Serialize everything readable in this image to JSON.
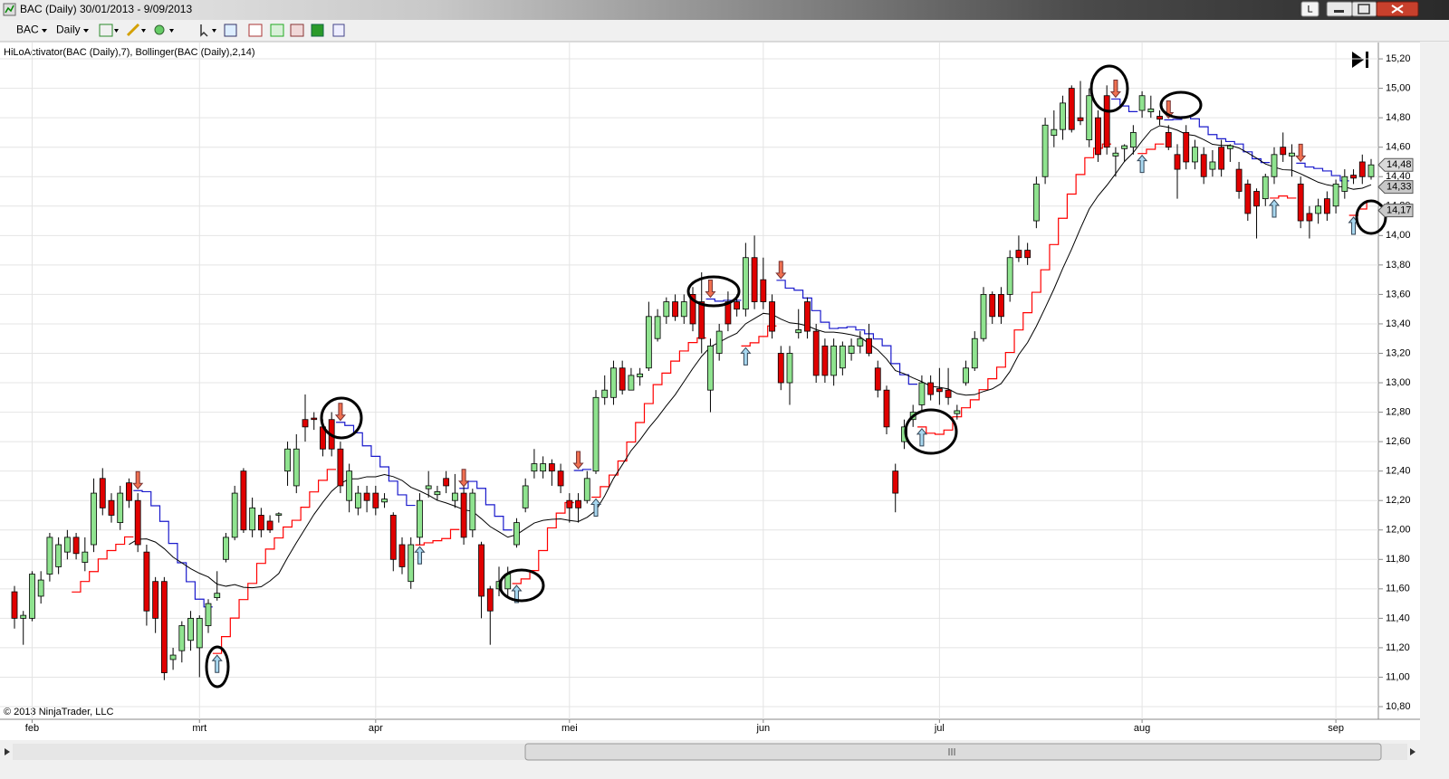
{
  "window": {
    "title": "BAC (Daily)  30/01/2013 - 9/09/2013",
    "button": "L"
  },
  "toolbar": {
    "instrument": "BAC",
    "interval": "Daily"
  },
  "indicator_label": "HiLoActivator(BAC (Daily),7), Bollinger(BAC (Daily),2,14)",
  "copyright": "© 2013 NinjaTrader, LLC",
  "chart_data": {
    "type": "candlestick",
    "categories": [
      null,
      null,
      "feb",
      null,
      null,
      null,
      null,
      null,
      null,
      null,
      null,
      null,
      null,
      null,
      null,
      null,
      null,
      null,
      null,
      null,
      null,
      "mrt",
      null,
      null,
      null,
      null,
      null,
      null,
      null,
      null,
      null,
      null,
      null,
      null,
      null,
      null,
      null,
      null,
      null,
      null,
      null,
      "apr",
      null,
      null,
      null,
      null,
      null,
      null,
      null,
      null,
      null,
      null,
      null,
      null,
      null,
      null,
      null,
      null,
      null,
      null,
      null,
      null,
      null,
      "mei",
      null,
      null,
      null,
      null,
      null,
      null,
      null,
      null,
      null,
      null,
      null,
      null,
      null,
      null,
      null,
      null,
      null,
      null,
      null,
      null,
      null,
      "jun",
      null,
      null,
      null,
      null,
      null,
      null,
      null,
      null,
      null,
      null,
      null,
      null,
      null,
      null,
      null,
      null,
      null,
      null,
      null,
      "jul",
      null,
      null,
      null,
      null,
      null,
      null,
      null,
      null,
      null,
      null,
      null,
      null,
      null,
      null,
      null,
      null,
      null,
      null,
      null,
      null,
      null,
      null,
      "aug",
      null,
      null,
      null,
      null,
      null,
      null,
      null,
      null,
      null,
      null,
      null,
      null,
      null,
      null,
      null,
      null,
      null,
      null,
      null,
      null,
      null,
      "sep",
      null,
      null,
      null,
      null
    ],
    "open": [
      11.58,
      11.4,
      11.4,
      11.55,
      11.7,
      11.75,
      11.85,
      11.95,
      11.78,
      11.9,
      12.35,
      12.2,
      12.05,
      12.32,
      12.2,
      11.85,
      11.65,
      11.65,
      11.12,
      11.18,
      11.25,
      11.2,
      11.35,
      11.54,
      11.8,
      11.95,
      12.4,
      12.0,
      12.1,
      12.06,
      12.1,
      12.4,
      12.3,
      12.75,
      12.76,
      12.7,
      12.75,
      12.55,
      12.2,
      12.15,
      12.25,
      12.25,
      12.19,
      12.1,
      11.9,
      11.65,
      11.95,
      12.28,
      12.24,
      12.35,
      12.2,
      12.25,
      12.0,
      11.9,
      11.6,
      11.6,
      11.6,
      11.9,
      12.15,
      12.4,
      12.4,
      12.45,
      12.4,
      12.2,
      12.2,
      12.2,
      12.4,
      12.9,
      12.9,
      13.1,
      12.95,
      13.04,
      13.1,
      13.3,
      13.45,
      13.55,
      13.45,
      13.6,
      13.55,
      12.95,
      13.2,
      13.55,
      13.55,
      13.5,
      13.85,
      13.7,
      13.55,
      13.2,
      13.0,
      13.34,
      13.55,
      13.35,
      13.25,
      13.05,
      13.1,
      13.2,
      13.25,
      13.3,
      13.1,
      12.95,
      12.4,
      12.6,
      12.75,
      12.85,
      13.0,
      12.96,
      12.95,
      12.79,
      13.0,
      13.1,
      13.3,
      13.6,
      13.6,
      13.6,
      13.9,
      13.9,
      14.1,
      14.4,
      14.68,
      14.72,
      15.0,
      14.8,
      14.65,
      14.8,
      14.95,
      14.54,
      14.59,
      14.6,
      14.85,
      14.84,
      14.81,
      14.7,
      14.55,
      14.7,
      14.5,
      14.55,
      14.45,
      14.6,
      14.59,
      14.45,
      14.35,
      14.3,
      14.25,
      14.4,
      14.6,
      14.54,
      14.35,
      14.15,
      14.15,
      14.25,
      14.2,
      14.3,
      14.41,
      14.5,
      14.4
    ],
    "high": [
      11.62,
      11.45,
      11.72,
      11.72,
      11.98,
      11.95,
      12.0,
      11.98,
      11.95,
      12.35,
      12.42,
      12.25,
      12.3,
      12.35,
      12.25,
      11.9,
      11.68,
      11.68,
      11.2,
      11.38,
      11.45,
      11.42,
      11.53,
      11.72,
      11.98,
      12.3,
      12.42,
      12.22,
      12.15,
      12.1,
      12.12,
      12.6,
      12.65,
      12.92,
      12.8,
      12.75,
      12.8,
      12.6,
      12.45,
      12.3,
      12.3,
      12.3,
      12.25,
      12.12,
      11.95,
      11.95,
      12.25,
      12.4,
      12.3,
      12.4,
      12.38,
      12.3,
      12.28,
      11.92,
      11.62,
      11.75,
      11.75,
      12.08,
      12.35,
      12.55,
      12.5,
      12.48,
      12.45,
      12.25,
      12.25,
      12.4,
      12.95,
      13.05,
      13.15,
      13.15,
      13.1,
      13.1,
      13.55,
      13.5,
      13.58,
      13.6,
      13.6,
      13.65,
      13.75,
      13.3,
      13.4,
      13.62,
      13.6,
      13.95,
      14.0,
      13.85,
      13.6,
      13.25,
      13.25,
      13.5,
      13.58,
      13.4,
      13.3,
      13.3,
      13.28,
      13.3,
      13.35,
      13.4,
      13.15,
      12.98,
      12.45,
      12.75,
      12.85,
      13.05,
      13.05,
      13.1,
      13.1,
      12.85,
      13.15,
      13.35,
      13.65,
      13.62,
      13.65,
      13.9,
      14.0,
      13.95,
      14.4,
      14.8,
      14.85,
      14.95,
      15.02,
      15.05,
      15.0,
      14.85,
      15.02,
      14.6,
      14.62,
      14.75,
      14.98,
      14.95,
      14.85,
      14.75,
      14.62,
      14.75,
      14.65,
      14.6,
      14.58,
      14.65,
      14.62,
      14.5,
      14.38,
      14.32,
      14.42,
      14.6,
      14.7,
      14.62,
      14.4,
      14.2,
      14.25,
      14.3,
      14.38,
      14.45,
      14.45,
      14.55,
      14.52
    ],
    "low": [
      11.33,
      11.22,
      11.38,
      11.5,
      11.65,
      11.7,
      11.8,
      11.8,
      11.72,
      11.85,
      12.1,
      12.05,
      12.0,
      12.15,
      11.85,
      11.35,
      11.3,
      10.98,
      11.05,
      11.1,
      11.18,
      11.0,
      11.3,
      11.52,
      11.78,
      11.93,
      11.98,
      11.95,
      11.95,
      11.98,
      12.05,
      12.3,
      12.25,
      12.6,
      12.68,
      12.5,
      12.5,
      12.25,
      12.12,
      12.1,
      12.12,
      12.1,
      12.15,
      11.72,
      11.7,
      11.6,
      11.9,
      12.22,
      12.2,
      12.25,
      12.15,
      11.9,
      11.95,
      11.4,
      11.22,
      11.55,
      11.55,
      11.88,
      12.12,
      12.35,
      12.35,
      12.3,
      12.25,
      12.05,
      12.05,
      12.18,
      12.38,
      12.85,
      12.85,
      12.92,
      12.95,
      12.98,
      13.08,
      13.28,
      13.4,
      13.42,
      13.4,
      13.35,
      13.2,
      12.8,
      13.15,
      13.35,
      13.45,
      13.45,
      13.5,
      13.5,
      13.3,
      12.95,
      12.85,
      13.3,
      13.3,
      13.0,
      13.0,
      12.98,
      13.05,
      13.15,
      13.2,
      13.18,
      12.9,
      12.65,
      12.12,
      12.55,
      12.7,
      12.8,
      12.88,
      12.85,
      12.85,
      12.75,
      12.98,
      13.08,
      13.28,
      13.4,
      13.4,
      13.55,
      13.82,
      13.8,
      14.05,
      14.35,
      14.6,
      14.65,
      14.7,
      14.75,
      14.6,
      14.5,
      14.55,
      14.4,
      14.5,
      14.55,
      14.8,
      14.8,
      14.75,
      14.58,
      14.25,
      14.45,
      14.45,
      14.35,
      14.4,
      14.4,
      14.5,
      14.25,
      14.1,
      13.98,
      14.2,
      14.35,
      14.5,
      14.4,
      14.05,
      13.98,
      14.08,
      14.1,
      14.15,
      14.25,
      14.35,
      14.35,
      14.38
    ],
    "close": [
      11.4,
      11.42,
      11.7,
      11.66,
      11.95,
      11.9,
      11.95,
      11.84,
      11.85,
      12.25,
      12.15,
      12.1,
      12.25,
      12.2,
      11.9,
      11.45,
      11.4,
      11.03,
      11.15,
      11.35,
      11.4,
      11.4,
      11.5,
      11.57,
      11.95,
      12.25,
      12.0,
      12.15,
      12.0,
      12.0,
      12.11,
      12.55,
      12.55,
      12.7,
      12.75,
      12.55,
      12.55,
      12.3,
      12.4,
      12.25,
      12.2,
      12.15,
      12.21,
      11.8,
      11.75,
      11.9,
      12.2,
      12.3,
      12.26,
      12.3,
      12.25,
      11.95,
      12.25,
      11.55,
      11.45,
      11.65,
      11.7,
      12.05,
      12.3,
      12.45,
      12.45,
      12.4,
      12.3,
      12.15,
      12.15,
      12.35,
      12.9,
      12.95,
      13.1,
      12.95,
      13.05,
      13.06,
      13.45,
      13.45,
      13.55,
      13.45,
      13.55,
      13.4,
      13.3,
      13.25,
      13.35,
      13.4,
      13.5,
      13.85,
      13.55,
      13.55,
      13.35,
      13.0,
      13.2,
      13.36,
      13.35,
      13.05,
      13.05,
      13.25,
      13.25,
      13.25,
      13.3,
      13.2,
      12.95,
      12.7,
      12.25,
      12.7,
      12.8,
      13.0,
      12.92,
      12.94,
      12.9,
      12.81,
      13.1,
      13.3,
      13.6,
      13.45,
      13.45,
      13.85,
      13.85,
      13.85,
      14.35,
      14.75,
      14.72,
      14.9,
      14.72,
      14.78,
      14.95,
      14.55,
      14.6,
      14.56,
      14.61,
      14.7,
      14.95,
      14.86,
      14.79,
      14.6,
      14.45,
      14.5,
      14.6,
      14.4,
      14.5,
      14.45,
      14.61,
      14.3,
      14.15,
      14.2,
      14.4,
      14.55,
      14.55,
      14.56,
      14.1,
      14.1,
      14.2,
      14.15,
      14.35,
      14.4,
      14.39,
      14.4,
      14.48
    ],
    "up_color": "#8fe38f",
    "down_color": "#e00000",
    "outline_color": "#000000",
    "indicators": {
      "hilo": {
        "period": 7,
        "up_color": "#ff0000",
        "down_color": "#1a1acc",
        "up_arrow_color": "#a8d8f0",
        "down_arrow_color": "#f07050"
      },
      "bollinger_middle": {
        "period": 14,
        "color": "#000000"
      }
    },
    "ylim": [
      10.714,
      15.311
    ],
    "yticks": [
      {
        "value": 10.8,
        "label": "10,80"
      },
      {
        "value": 11.0,
        "label": "11,00"
      },
      {
        "value": 11.2,
        "label": "11,20"
      },
      {
        "value": 11.4,
        "label": "11,40"
      },
      {
        "value": 11.6,
        "label": "11,60"
      },
      {
        "value": 11.8,
        "label": "11,80"
      },
      {
        "value": 12.0,
        "label": "12,00"
      },
      {
        "value": 12.2,
        "label": "12,20"
      },
      {
        "value": 12.4,
        "label": "12,40"
      },
      {
        "value": 12.6,
        "label": "12,60"
      },
      {
        "value": 12.8,
        "label": "12,80"
      },
      {
        "value": 13.0,
        "label": "13,00"
      },
      {
        "value": 13.2,
        "label": "13,20"
      },
      {
        "value": 13.4,
        "label": "13,40"
      },
      {
        "value": 13.6,
        "label": "13,60"
      },
      {
        "value": 13.8,
        "label": "13,80"
      },
      {
        "value": 14.0,
        "label": "14,00"
      },
      {
        "value": 14.2,
        "label": "14,20"
      },
      {
        "value": 14.4,
        "label": "14,40"
      },
      {
        "value": 14.6,
        "label": "14,60"
      },
      {
        "value": 14.8,
        "label": "14,80"
      },
      {
        "value": 15.0,
        "label": "15,00"
      },
      {
        "value": 15.2,
        "label": "15,20"
      }
    ],
    "price_markers": [
      {
        "value": 14.48,
        "label": "14,48",
        "fill": "#d9d9d9"
      },
      {
        "value": 14.33,
        "label": "14,33",
        "fill": "#c8c8c8"
      },
      {
        "value": 14.17,
        "label": "14,17",
        "fill": "#c8c8c8"
      }
    ],
    "grid": true
  }
}
